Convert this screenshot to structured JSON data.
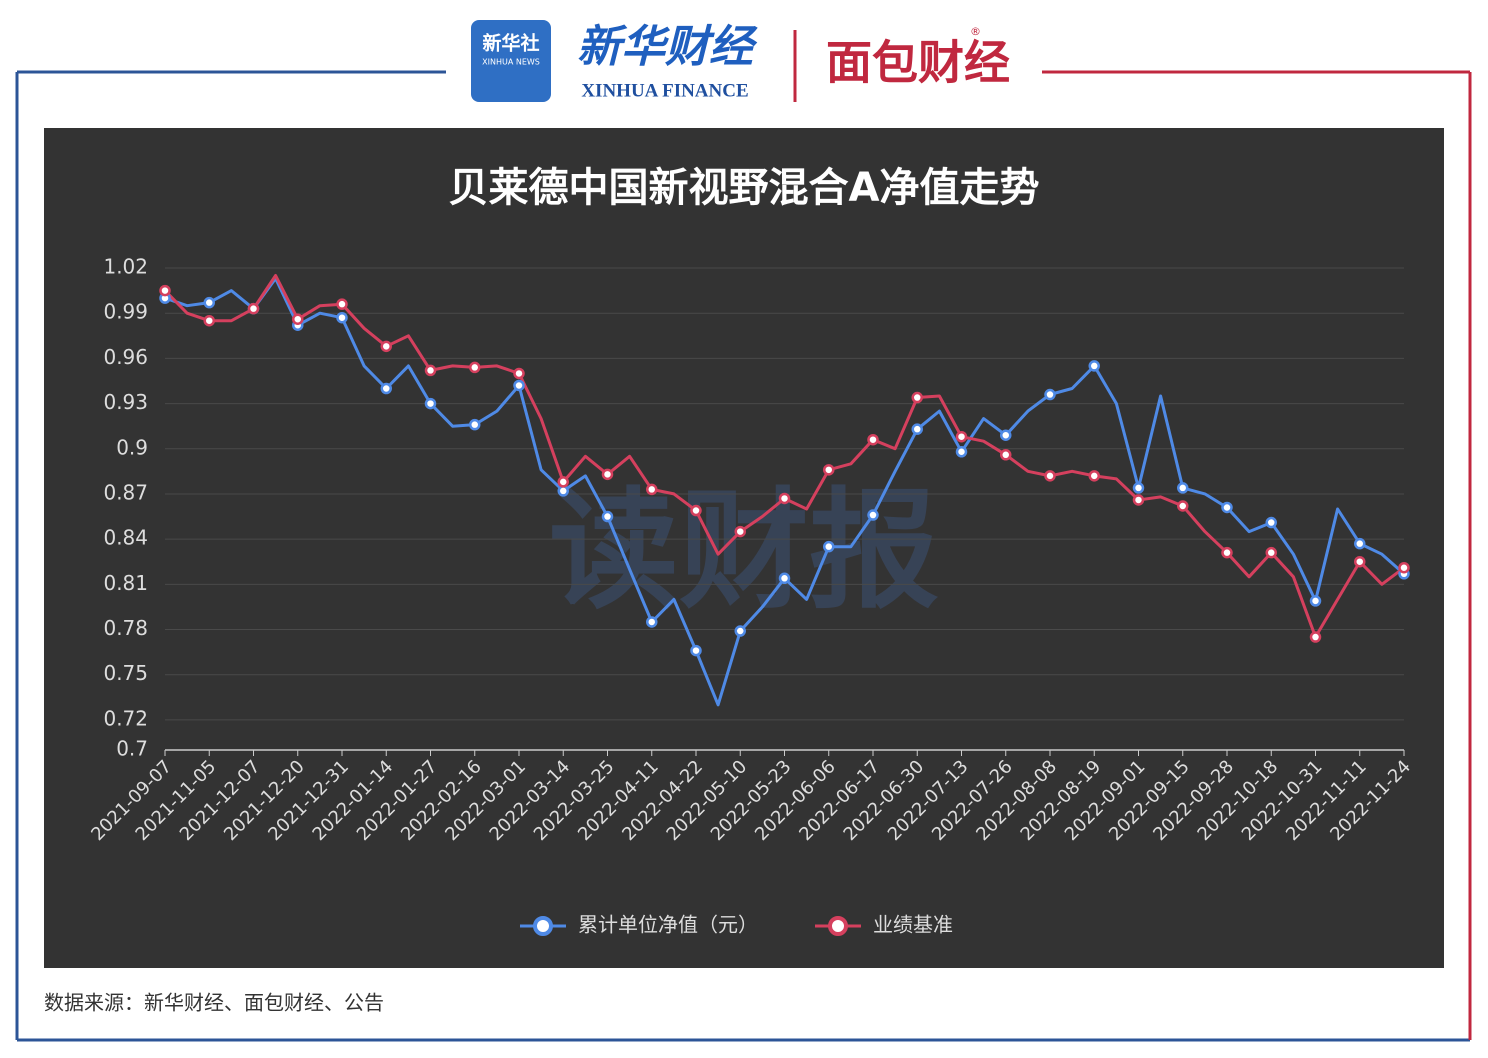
{
  "header": {
    "agency": "新华社",
    "agency_en": "XINHUA NEWS",
    "brand": "新华财经",
    "brand_en": "XINHUA FINANCE",
    "partner": "面包财经",
    "registered": "®"
  },
  "watermark": "读财报",
  "source": "数据来源：新华财经、面包财经、公告",
  "chart_data": {
    "type": "line",
    "title": "贝莱德中国新视野混合A净值走势",
    "categories": [
      "2021-09-07",
      null,
      "2021-11-05",
      null,
      "2021-12-07",
      null,
      "2021-12-20",
      null,
      "2021-12-31",
      null,
      "2022-01-14",
      null,
      "2022-01-27",
      null,
      "2022-02-16",
      null,
      "2022-03-01",
      null,
      "2022-03-14",
      null,
      "2022-03-25",
      null,
      "2022-04-11",
      null,
      "2022-04-22",
      null,
      "2022-05-10",
      null,
      "2022-05-23",
      null,
      "2022-06-06",
      null,
      "2022-06-17",
      null,
      "2022-06-30",
      null,
      "2022-07-13",
      null,
      "2022-07-26",
      null,
      "2022-08-08",
      null,
      "2022-08-19",
      null,
      "2022-09-01",
      null,
      "2022-09-15",
      null,
      "2022-09-28",
      null,
      "2022-10-18",
      null,
      "2022-10-31",
      null,
      "2022-11-11",
      null,
      "2022-11-24"
    ],
    "series": [
      {
        "name": "累计单位净值（元）",
        "color": "#4f8ae6",
        "values": [
          1.0,
          0.995,
          0.997,
          1.005,
          0.993,
          1.013,
          0.982,
          0.99,
          0.987,
          0.955,
          0.94,
          0.955,
          0.93,
          0.915,
          0.916,
          0.925,
          0.942,
          0.886,
          0.872,
          0.882,
          0.855,
          0.82,
          0.785,
          0.8,
          0.766,
          0.73,
          0.779,
          0.795,
          0.814,
          0.8,
          0.835,
          0.835,
          0.856,
          0.885,
          0.913,
          0.925,
          0.898,
          0.92,
          0.909,
          0.925,
          0.936,
          0.94,
          0.955,
          0.93,
          0.874,
          0.935,
          0.874,
          0.87,
          0.861,
          0.845,
          0.851,
          0.83,
          0.799,
          0.86,
          0.837,
          0.83,
          0.817
        ]
      },
      {
        "name": "业绩基准",
        "color": "#d5405e",
        "values": [
          1.005,
          0.99,
          0.985,
          0.985,
          0.993,
          1.015,
          0.986,
          0.995,
          0.996,
          0.98,
          0.968,
          0.975,
          0.952,
          0.955,
          0.954,
          0.955,
          0.95,
          0.92,
          0.878,
          0.895,
          0.883,
          0.895,
          0.873,
          0.87,
          0.859,
          0.83,
          0.845,
          0.855,
          0.867,
          0.86,
          0.886,
          0.89,
          0.906,
          0.9,
          0.934,
          0.935,
          0.908,
          0.905,
          0.896,
          0.885,
          0.882,
          0.885,
          0.882,
          0.88,
          0.866,
          0.868,
          0.862,
          0.845,
          0.831,
          0.815,
          0.831,
          0.815,
          0.775,
          0.8,
          0.825,
          0.81,
          0.821
        ]
      }
    ],
    "ylim": [
      0.7,
      1.02
    ],
    "yticks": [
      0.7,
      0.72,
      0.75,
      0.78,
      0.81,
      0.84,
      0.87,
      0.9,
      0.93,
      0.96,
      0.99,
      1.02
    ],
    "grid": true
  }
}
